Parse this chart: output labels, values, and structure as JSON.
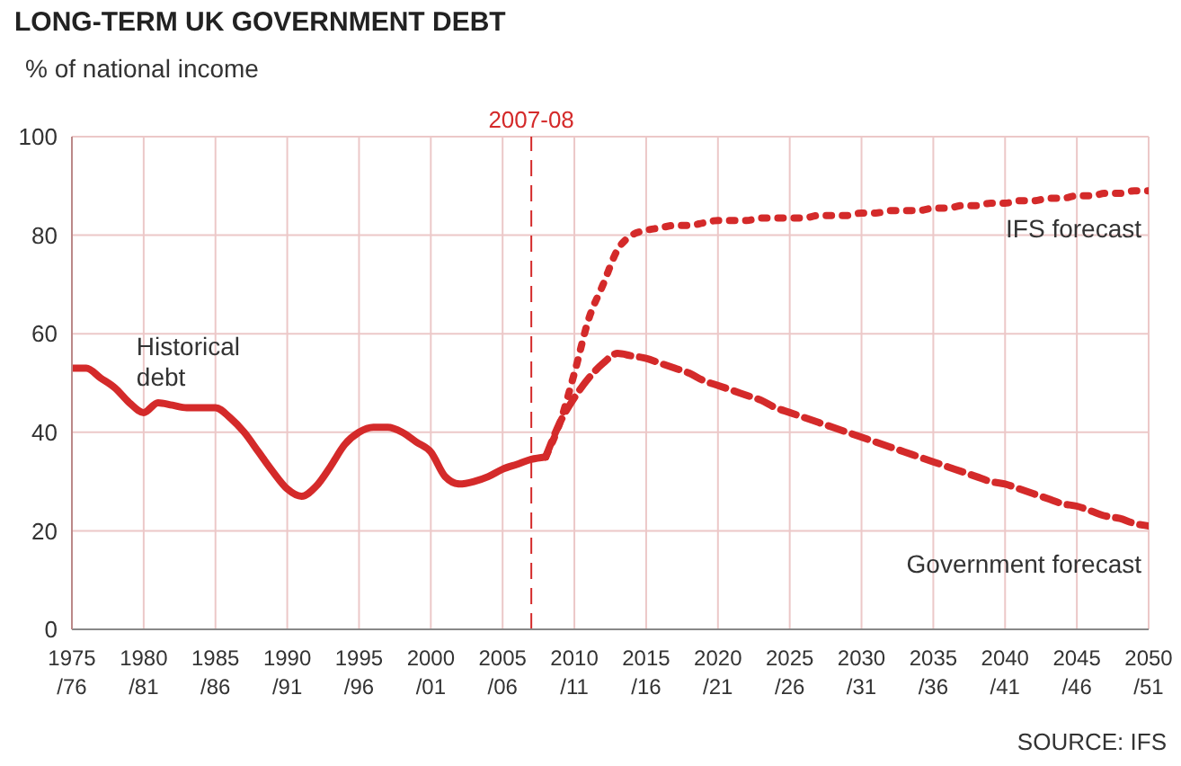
{
  "chart_data": {
    "type": "line",
    "title": "LONG-TERM UK GOVERNMENT DEBT",
    "ylabel": "% of national income",
    "categories": [
      "1975/76",
      null,
      null,
      null,
      null,
      "1980/81",
      null,
      null,
      null,
      null,
      "1985/86",
      null,
      null,
      null,
      null,
      "1990/91",
      null,
      null,
      null,
      null,
      "1995/96",
      null,
      null,
      null,
      null,
      "2000/01",
      null,
      null,
      null,
      null,
      "2005/06",
      null,
      "2007-08",
      null,
      null,
      "2010/11",
      null,
      null,
      null,
      null,
      "2015/16",
      null,
      null,
      null,
      null,
      "2020/21",
      null,
      null,
      null,
      null,
      "2025/26",
      null,
      null,
      null,
      null,
      "2030/31",
      null,
      null,
      null,
      null,
      "2035/36",
      null,
      null,
      null,
      null,
      "2040/41",
      null,
      null,
      null,
      null,
      "2045/46",
      null,
      null,
      null,
      null,
      "2050/51"
    ],
    "ylim": [
      0,
      100
    ],
    "yticks": [
      0,
      20,
      40,
      60,
      80,
      100
    ],
    "grid": true,
    "series": [
      {
        "name": "Historical debt",
        "color": "#d42a2a",
        "line_style": "solid",
        "values": [
          53,
          53,
          51,
          49,
          46,
          44,
          46,
          45.5,
          45,
          45,
          45,
          43,
          40,
          36,
          32,
          28.5,
          27,
          29,
          33,
          37.5,
          40,
          41,
          41,
          40,
          38,
          36,
          31,
          29.5,
          30,
          31,
          32.5,
          33.5,
          34.5,
          35,
          null,
          null,
          null,
          null,
          null,
          null,
          null,
          null,
          null,
          null,
          null,
          null,
          null,
          null,
          null,
          null,
          null,
          null,
          null,
          null,
          null,
          null,
          null,
          null,
          null,
          null,
          null,
          null,
          null,
          null,
          null,
          null,
          null,
          null,
          null,
          null,
          null,
          null,
          null,
          null,
          null,
          null
        ]
      },
      {
        "name": "IFS forecast",
        "color": "#d42a2a",
        "line_style": "dotted",
        "values": [
          null,
          null,
          null,
          null,
          null,
          null,
          null,
          null,
          null,
          null,
          null,
          null,
          null,
          null,
          null,
          null,
          null,
          null,
          null,
          null,
          null,
          null,
          null,
          null,
          null,
          null,
          null,
          null,
          null,
          null,
          null,
          null,
          null,
          35,
          42,
          52,
          63,
          70,
          77,
          80,
          81,
          81.5,
          82,
          82,
          82.5,
          83,
          83,
          83,
          83.5,
          83.5,
          83.5,
          83.5,
          84,
          84,
          84,
          84.5,
          84.5,
          85,
          85,
          85,
          85.5,
          85.5,
          86,
          86,
          86.5,
          86.5,
          87,
          87,
          87.5,
          87.5,
          88,
          88,
          88.5,
          88.5,
          89,
          89
        ]
      },
      {
        "name": "Government forecast",
        "color": "#d42a2a",
        "line_style": "dashed",
        "values": [
          null,
          null,
          null,
          null,
          null,
          null,
          null,
          null,
          null,
          null,
          null,
          null,
          null,
          null,
          null,
          null,
          null,
          null,
          null,
          null,
          null,
          null,
          null,
          null,
          null,
          null,
          null,
          null,
          null,
          null,
          null,
          null,
          null,
          35,
          42,
          47,
          51,
          54,
          56,
          55.5,
          55,
          54,
          53,
          52,
          50.5,
          49.5,
          48.5,
          47.5,
          46.5,
          45,
          44,
          43,
          42,
          41,
          40,
          39,
          38,
          37,
          36,
          35,
          34,
          33,
          32,
          31,
          30,
          29.5,
          28.5,
          27.5,
          26.5,
          25.5,
          25,
          24,
          23,
          22.5,
          21.5,
          21
        ]
      }
    ],
    "ref_lines": [
      {
        "axis": "x",
        "value": "2007-08",
        "label": "2007-08",
        "color": "#d42a2a",
        "line_style": "dashed"
      }
    ],
    "annotations": [
      "SOURCE: IFS"
    ]
  }
}
